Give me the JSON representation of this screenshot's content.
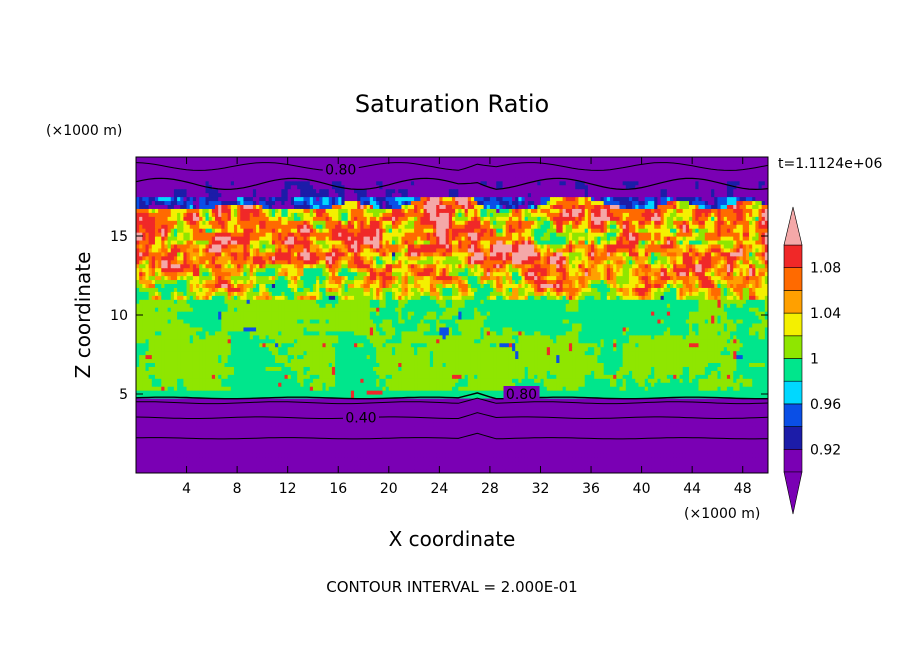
{
  "chart_data": {
    "type": "heatmap",
    "title": "Saturation Ratio",
    "xlabel": "X coordinate",
    "ylabel": "Z coordinate",
    "x_unit_label": "(×1000 m)",
    "y_unit_label": "(×1000 m)",
    "time_label": "t=1.1124e+06",
    "footer": "CONTOUR INTERVAL = 2.000E-01",
    "xlim": [
      0,
      50
    ],
    "ylim": [
      0,
      20
    ],
    "x_ticks": [
      4,
      8,
      12,
      16,
      20,
      24,
      28,
      32,
      36,
      40,
      44,
      48
    ],
    "y_ticks": [
      5,
      10,
      15
    ],
    "colorbar": {
      "levels": [
        0.9,
        0.92,
        0.94,
        0.96,
        0.98,
        1.0,
        1.02,
        1.04,
        1.06,
        1.08,
        1.1
      ],
      "tick_labels": [
        "0.92",
        "0.96",
        "1",
        "1.04",
        "1.08"
      ],
      "tick_values": [
        0.92,
        0.96,
        1.0,
        1.04,
        1.08
      ],
      "colors": [
        "#7a00b4",
        "#1c1ca8",
        "#0a4fe6",
        "#00d8ff",
        "#00e68c",
        "#8fe600",
        "#f4f000",
        "#ffa000",
        "#ff6a00",
        "#f02828",
        "#f4a8a8"
      ],
      "extend": "both"
    },
    "contour_labels": [
      {
        "text": "0.80",
        "x": 30.5,
        "z": 5.0
      },
      {
        "text": "0.40",
        "x": 17.8,
        "z": 3.5
      },
      {
        "text": "0.80",
        "x": 16.2,
        "z": 19.2
      }
    ],
    "layers": [
      {
        "z_range": [
          0,
          4.9
        ],
        "value": "<0.9"
      },
      {
        "z_range": [
          4.9,
          5.1
        ],
        "value": "~1.0"
      },
      {
        "z_range": [
          5.1,
          14.5
        ],
        "value": "0.98-1.02"
      },
      {
        "z_range": [
          11.0,
          14.5
        ],
        "value": "1.0-1.1"
      },
      {
        "z_range": [
          14.5,
          17.5
        ],
        "value": "1.04->1.1"
      },
      {
        "z_range": [
          17.5,
          20
        ],
        "value": "<0.9"
      }
    ]
  }
}
